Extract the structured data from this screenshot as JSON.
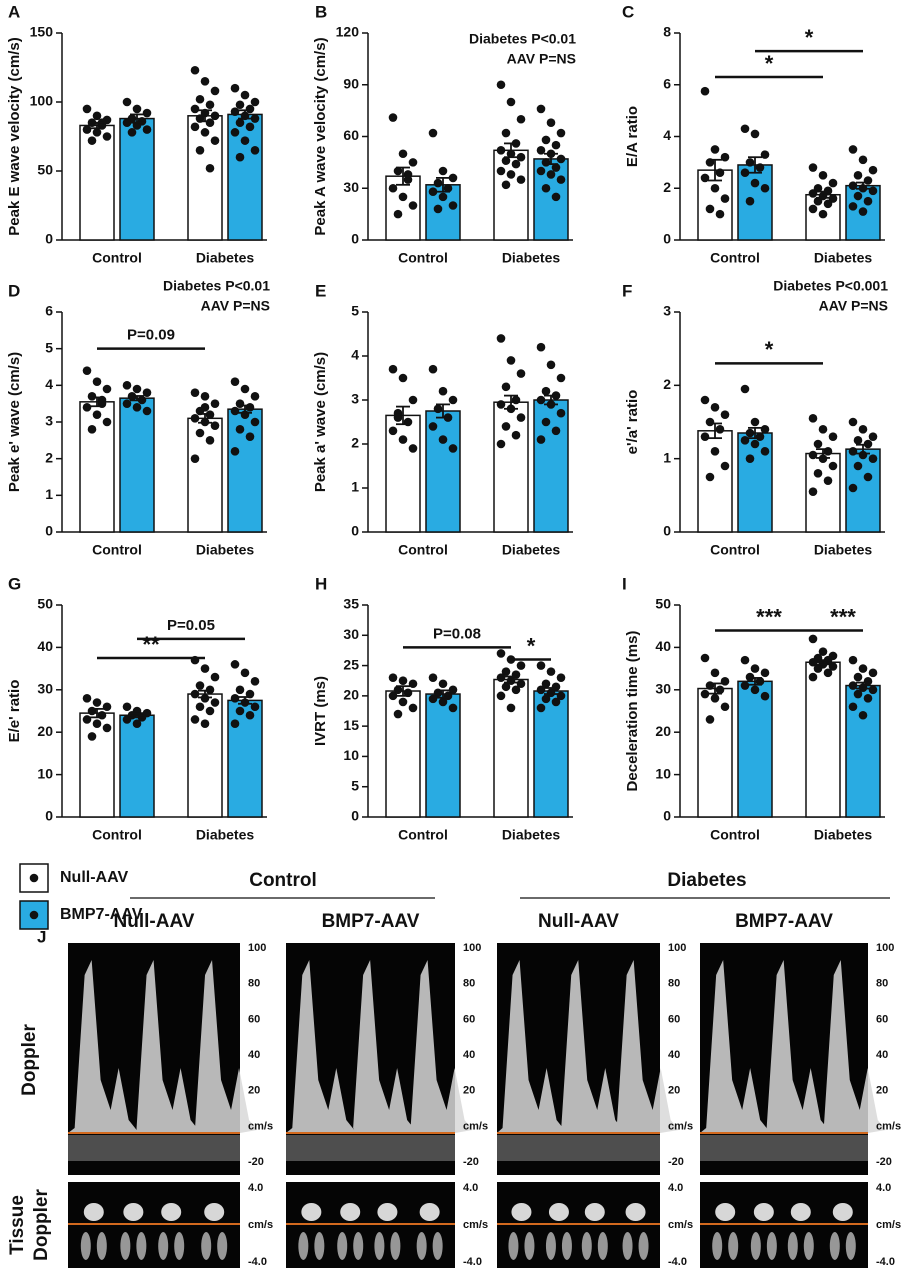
{
  "chart_data": [
    {
      "type": "bar",
      "label": "A",
      "ylabel": "Peak E wave velocity (cm/s)",
      "categories": [
        "Control",
        "Diabetes"
      ],
      "ylim": [
        0,
        150
      ],
      "yticks": [
        0,
        50,
        100,
        150
      ],
      "series": [
        {
          "name": "Null-AAV",
          "color": "#ffffff",
          "values": [
            83,
            90
          ],
          "errors": [
            2,
            4
          ],
          "points": [
            [
              95,
              90,
              87,
              85,
              83,
              80,
              78,
              75,
              72,
              85
            ],
            [
              123,
              115,
              108,
              102,
              98,
              95,
              92,
              90,
              88,
              85,
              82,
              78,
              72,
              65,
              52
            ]
          ]
        },
        {
          "name": "BMP7-AAV",
          "color": "#29abe2",
          "values": [
            88,
            91
          ],
          "errors": [
            3,
            3
          ],
          "points": [
            [
              100,
              95,
              92,
              88,
              86,
              85,
              83,
              80,
              78
            ],
            [
              110,
              105,
              100,
              98,
              95,
              93,
              90,
              88,
              85,
              82,
              78,
              72,
              65,
              60
            ]
          ]
        }
      ]
    },
    {
      "type": "bar",
      "label": "B",
      "ylabel": "Peak A wave velocity (cm/s)",
      "categories": [
        "Control",
        "Diabetes"
      ],
      "ylim": [
        0,
        120
      ],
      "yticks": [
        0,
        30,
        60,
        90,
        120
      ],
      "stats": [
        "Diabetes P<0.01",
        "AAV P=NS"
      ],
      "series": [
        {
          "name": "Null-AAV",
          "color": "#ffffff",
          "values": [
            37,
            52
          ],
          "errors": [
            5,
            4
          ],
          "points": [
            [
              71,
              50,
              45,
              40,
              35,
              30,
              25,
              20,
              15,
              38
            ],
            [
              90,
              80,
              70,
              62,
              56,
              52,
              50,
              48,
              46,
              44,
              40,
              38,
              35,
              32
            ]
          ]
        },
        {
          "name": "BMP7-AAV",
          "color": "#29abe2",
          "values": [
            32,
            47
          ],
          "errors": [
            4,
            3
          ],
          "points": [
            [
              62,
              40,
              36,
              33,
              30,
              28,
              25,
              20,
              18
            ],
            [
              76,
              68,
              62,
              58,
              55,
              52,
              50,
              47,
              45,
              42,
              40,
              38,
              35,
              30,
              25
            ]
          ]
        }
      ]
    },
    {
      "type": "bar",
      "label": "C",
      "ylabel": "E/A ratio",
      "categories": [
        "Control",
        "Diabetes"
      ],
      "ylim": [
        0,
        8
      ],
      "yticks": [
        0,
        2,
        4,
        6,
        8
      ],
      "significance": [
        "*",
        "*"
      ],
      "series": [
        {
          "name": "Null-AAV",
          "color": "#ffffff",
          "values": [
            2.7,
            1.75
          ],
          "errors": [
            0.4,
            0.12
          ],
          "points": [
            [
              5.75,
              3.5,
              3.2,
              3.0,
              2.6,
              2.4,
              2.0,
              1.6,
              1.2,
              1.0
            ],
            [
              2.8,
              2.5,
              2.2,
              2.0,
              1.9,
              1.8,
              1.7,
              1.6,
              1.5,
              1.4,
              1.2,
              1.0
            ]
          ]
        },
        {
          "name": "BMP7-AAV",
          "color": "#29abe2",
          "values": [
            2.9,
            2.1
          ],
          "errors": [
            0.3,
            0.12
          ],
          "points": [
            [
              4.3,
              4.1,
              3.3,
              3.0,
              2.8,
              2.6,
              2.2,
              2.0,
              1.5
            ],
            [
              3.5,
              3.1,
              2.7,
              2.5,
              2.3,
              2.1,
              2.0,
              1.9,
              1.7,
              1.5,
              1.3,
              1.1
            ]
          ]
        }
      ]
    },
    {
      "type": "bar",
      "label": "D",
      "ylabel": "Peak e' wave (cm/s)",
      "categories": [
        "Control",
        "Diabetes"
      ],
      "ylim": [
        0,
        6
      ],
      "yticks": [
        0,
        1,
        2,
        3,
        4,
        5,
        6
      ],
      "stats": [
        "Diabetes P<0.01",
        "AAV P=NS"
      ],
      "significance": [
        "P=0.09"
      ],
      "series": [
        {
          "name": "Null-AAV",
          "color": "#ffffff",
          "values": [
            3.55,
            3.1
          ],
          "errors": [
            0.12,
            0.12
          ],
          "points": [
            [
              4.4,
              4.1,
              3.9,
              3.7,
              3.6,
              3.4,
              3.2,
              3.0,
              2.8,
              3.5
            ],
            [
              3.8,
              3.7,
              3.5,
              3.3,
              3.2,
              3.1,
              3.0,
              2.9,
              2.7,
              2.5,
              2.0,
              3.4
            ]
          ]
        },
        {
          "name": "BMP7-AAV",
          "color": "#29abe2",
          "values": [
            3.65,
            3.35
          ],
          "errors": [
            0.06,
            0.1
          ],
          "points": [
            [
              4.0,
              3.9,
              3.8,
              3.7,
              3.6,
              3.5,
              3.4,
              3.3
            ],
            [
              4.1,
              3.9,
              3.7,
              3.5,
              3.4,
              3.3,
              3.2,
              3.0,
              2.8,
              2.6,
              2.2
            ]
          ]
        }
      ]
    },
    {
      "type": "bar",
      "label": "E",
      "ylabel": "Peak a' wave (cm/s)",
      "categories": [
        "Control",
        "Diabetes"
      ],
      "ylim": [
        0,
        5
      ],
      "yticks": [
        0,
        1,
        2,
        3,
        4,
        5
      ],
      "series": [
        {
          "name": "Null-AAV",
          "color": "#ffffff",
          "values": [
            2.65,
            2.95
          ],
          "errors": [
            0.2,
            0.15
          ],
          "points": [
            [
              3.7,
              3.5,
              3.0,
              2.7,
              2.5,
              2.3,
              2.1,
              1.9,
              2.6
            ],
            [
              4.4,
              3.9,
              3.6,
              3.3,
              3.0,
              2.9,
              2.8,
              2.6,
              2.4,
              2.2,
              2.0
            ]
          ]
        },
        {
          "name": "BMP7-AAV",
          "color": "#29abe2",
          "values": [
            2.75,
            3.0
          ],
          "errors": [
            0.15,
            0.1
          ],
          "points": [
            [
              3.7,
              3.2,
              3.0,
              2.8,
              2.6,
              2.4,
              2.1,
              1.9
            ],
            [
              4.2,
              3.8,
              3.5,
              3.2,
              3.1,
              3.0,
              2.9,
              2.7,
              2.5,
              2.3,
              2.1
            ]
          ]
        }
      ]
    },
    {
      "type": "bar",
      "label": "F",
      "ylabel": "e'/a' ratio",
      "categories": [
        "Control",
        "Diabetes"
      ],
      "ylim": [
        0,
        3
      ],
      "yticks": [
        0,
        1,
        2,
        3
      ],
      "stats": [
        "Diabetes P<0.001",
        "AAV P=NS"
      ],
      "significance": [
        "*"
      ],
      "series": [
        {
          "name": "Null-AAV",
          "color": "#ffffff",
          "values": [
            1.38,
            1.07
          ],
          "errors": [
            0.1,
            0.06
          ],
          "points": [
            [
              1.8,
              1.7,
              1.6,
              1.5,
              1.4,
              1.3,
              1.1,
              0.9,
              0.75
            ],
            [
              1.55,
              1.4,
              1.3,
              1.2,
              1.1,
              1.05,
              1.0,
              0.9,
              0.8,
              0.7,
              0.55
            ]
          ]
        },
        {
          "name": "BMP7-AAV",
          "color": "#29abe2",
          "values": [
            1.35,
            1.13
          ],
          "errors": [
            0.07,
            0.06
          ],
          "points": [
            [
              1.95,
              1.5,
              1.4,
              1.35,
              1.3,
              1.25,
              1.2,
              1.1,
              1.0
            ],
            [
              1.5,
              1.4,
              1.3,
              1.25,
              1.2,
              1.1,
              1.05,
              1.0,
              0.9,
              0.75,
              0.6
            ]
          ]
        }
      ]
    },
    {
      "type": "bar",
      "label": "G",
      "ylabel": "E/e' ratio",
      "categories": [
        "Control",
        "Diabetes"
      ],
      "ylim": [
        0,
        50
      ],
      "yticks": [
        0,
        10,
        20,
        30,
        40,
        50
      ],
      "significance": [
        "**",
        "P=0.05"
      ],
      "series": [
        {
          "name": "Null-AAV",
          "color": "#ffffff",
          "values": [
            24.5,
            29
          ],
          "errors": [
            1,
            0.8
          ],
          "points": [
            [
              28,
              27,
              26,
              25,
              24,
              23,
              22,
              21,
              19
            ],
            [
              37,
              35,
              33,
              31,
              30,
              29,
              28,
              27,
              26,
              25,
              23,
              22
            ]
          ]
        },
        {
          "name": "BMP7-AAV",
          "color": "#29abe2",
          "values": [
            24,
            27.5
          ],
          "errors": [
            0.5,
            0.8
          ],
          "points": [
            [
              26,
              25,
              24.5,
              24,
              23.5,
              23,
              22
            ],
            [
              36,
              34,
              32,
              30,
              29,
              28,
              27,
              26,
              25,
              24,
              22
            ]
          ]
        }
      ]
    },
    {
      "type": "bar",
      "label": "H",
      "ylabel": "IVRT (ms)",
      "categories": [
        "Control",
        "Diabetes"
      ],
      "ylim": [
        0,
        35
      ],
      "yticks": [
        0,
        5,
        10,
        15,
        20,
        25,
        30,
        35
      ],
      "significance": [
        "P=0.08",
        "*"
      ],
      "series": [
        {
          "name": "Null-AAV",
          "color": "#ffffff",
          "values": [
            20.8,
            22.7
          ],
          "errors": [
            0.8,
            0.5
          ],
          "points": [
            [
              23,
              22.5,
              22,
              21,
              20.5,
              20,
              19,
              18,
              17
            ],
            [
              27,
              26,
              25,
              24,
              23.5,
              23,
              22.5,
              22,
              21.5,
              21,
              20,
              18
            ]
          ]
        },
        {
          "name": "BMP7-AAV",
          "color": "#29abe2",
          "values": [
            20.3,
            20.8
          ],
          "errors": [
            0.6,
            0.5
          ],
          "points": [
            [
              23,
              22,
              21,
              20.5,
              20,
              19.5,
              19,
              18
            ],
            [
              25,
              24,
              23,
              22,
              21.5,
              21,
              20.5,
              20,
              19.5,
              19,
              18
            ]
          ]
        }
      ]
    },
    {
      "type": "bar",
      "label": "I",
      "ylabel": "Deceleration time (ms)",
      "categories": [
        "Control",
        "Diabetes"
      ],
      "ylim": [
        0,
        50
      ],
      "yticks": [
        0,
        10,
        20,
        30,
        40,
        50
      ],
      "significance": [
        "***",
        "***"
      ],
      "series": [
        {
          "name": "Null-AAV",
          "color": "#ffffff",
          "values": [
            30.3,
            36.5
          ],
          "errors": [
            1.2,
            0.5
          ],
          "points": [
            [
              37.5,
              34,
              32,
              31,
              30,
              29,
              28,
              26,
              23
            ],
            [
              42,
              39,
              38,
              37.5,
              37,
              36.5,
              36,
              35.5,
              35,
              34,
              33
            ]
          ]
        },
        {
          "name": "BMP7-AAV",
          "color": "#29abe2",
          "values": [
            32,
            31
          ],
          "errors": [
            0.8,
            0.7
          ],
          "points": [
            [
              37,
              35,
              34,
              33,
              32,
              31,
              30,
              28.5
            ],
            [
              37,
              35,
              34,
              33,
              32,
              31,
              30.5,
              30,
              29,
              28,
              26,
              24
            ]
          ]
        }
      ]
    }
  ],
  "panel_j": {
    "label": "J",
    "groups": [
      "Control",
      "Diabetes"
    ],
    "columns": [
      "Null-AAV",
      "BMP7-AAV",
      "Null-AAV",
      "BMP7-AAV"
    ],
    "doppler_row": "Doppler",
    "tissue_row": [
      "Tissue",
      "Doppler"
    ],
    "doppler_scale": [
      "100",
      "80",
      "60",
      "40",
      "20",
      "cm/s",
      "-20"
    ],
    "tissue_scale": [
      "4.0",
      "cm/s",
      "-4.0"
    ]
  }
}
